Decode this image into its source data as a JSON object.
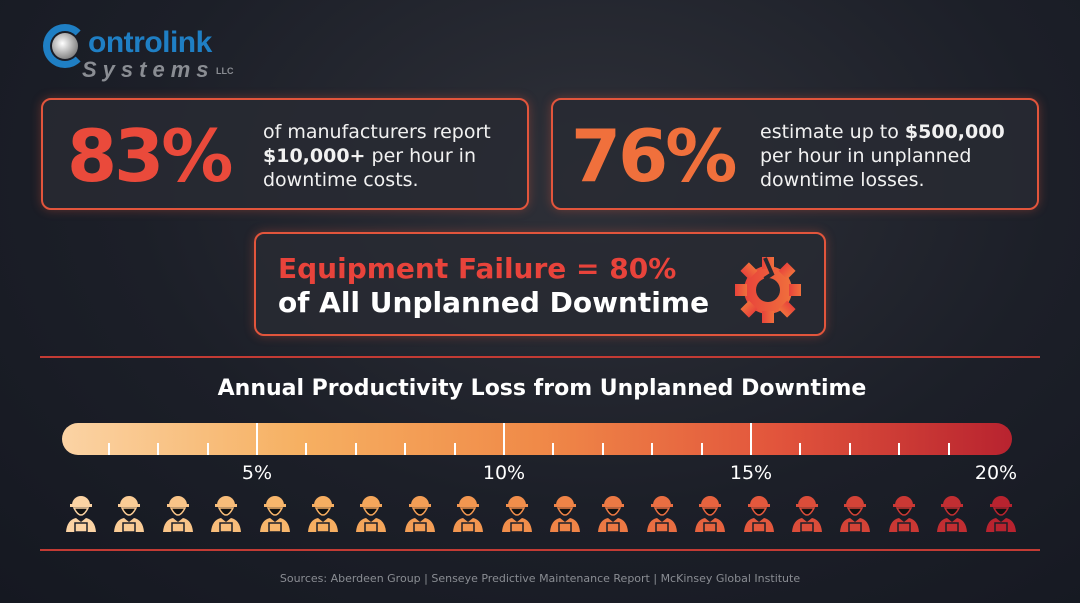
{
  "logo": {
    "line1": "ontrolink",
    "line2": "Systems",
    "suffix": "LLC"
  },
  "cards": [
    {
      "stat": "83%",
      "text_pre": "of manufacturers report ",
      "bold": "$10,000+",
      "text_post": " per hour in downtime costs.",
      "color": "#ea4a3b"
    },
    {
      "stat": "76%",
      "text_pre": "estimate up to ",
      "bold": "$500,000",
      "text_post": " per hour in unplanned downtime losses.",
      "color": "#f0703c"
    }
  ],
  "highlight": {
    "line1": "Equipment Failure = 80%",
    "line2": "of All Unplanned Downtime",
    "icon": "broken-gear-icon",
    "color": "#e8433b"
  },
  "scale": {
    "title": "Annual Productivity Loss from Unplanned Downtime",
    "labels": [
      "5%",
      "10%",
      "15%",
      "20%"
    ],
    "worker_count": 20,
    "icon": "worker-hardhat-icon"
  },
  "sources": "Sources: Aberdeen Group | Senseye Predictive Maintenance Report | McKinsey Global Institute"
}
